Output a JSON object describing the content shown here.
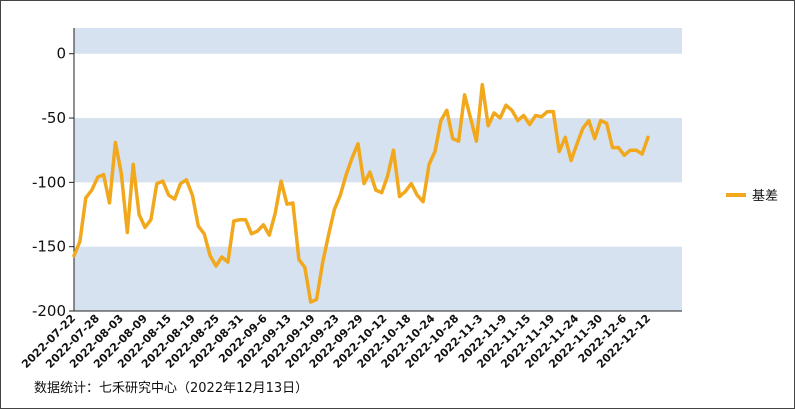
{
  "chart_data": {
    "type": "line",
    "title": "",
    "xlabel": "",
    "ylabel": "",
    "ylim": [
      -200,
      20
    ],
    "yticks": [
      0,
      -50,
      -100,
      -150,
      -200
    ],
    "grid": "alternating horizontal bands",
    "legend_position": "right",
    "band_color": "#d6e2ef",
    "line_color": "#f2a81d",
    "x_tick_labels": [
      "2022-07-22",
      "2022-07-28",
      "2022-08-03",
      "2022-08-09",
      "2022-08-15",
      "2022-08-19",
      "2022-08-25",
      "2022-08-31",
      "2022-09-6",
      "2022-09-13",
      "2022-09-19",
      "2022-09-23",
      "2022-09-29",
      "2022-10-12",
      "2022-10-18",
      "2022-10-24",
      "2022-10-28",
      "2022-11-3",
      "2022-11-9",
      "2022-11-15",
      "2022-11-19",
      "2022-11-24",
      "2022-11-30",
      "2022-12-6",
      "2022-12-12"
    ],
    "series": [
      {
        "name": "基差",
        "values": [
          -157,
          -146,
          -112,
          -106,
          -96,
          -94,
          -116,
          -69,
          -93,
          -139,
          -86,
          -125,
          -135,
          -129,
          -101,
          -99,
          -110,
          -113,
          -101,
          -98,
          -110,
          -134,
          -140,
          -157,
          -165,
          -158,
          -162,
          -130,
          -129,
          -129,
          -140,
          -138,
          -133,
          -141,
          -124,
          -99,
          -117,
          -116,
          -160,
          -166,
          -193,
          -191,
          -163,
          -141,
          -121,
          -110,
          -94,
          -81,
          -70,
          -101,
          -92,
          -106,
          -108,
          -95,
          -75,
          -111,
          -107,
          -101,
          -110,
          -115,
          -86,
          -76,
          -52,
          -44,
          -66,
          -68,
          -32,
          -50,
          -68,
          -24,
          -56,
          -46,
          -50,
          -40,
          -44,
          -52,
          -48,
          -55,
          -48,
          -49,
          -45,
          -45,
          -76,
          -65,
          -83,
          -70,
          -58,
          -52,
          -66,
          -52,
          -54,
          -73,
          -73,
          -79,
          -75,
          -75,
          -78,
          -65
        ]
      }
    ]
  },
  "footer": {
    "source": "数据统计：七禾研究中心（2022年12月13日）"
  }
}
